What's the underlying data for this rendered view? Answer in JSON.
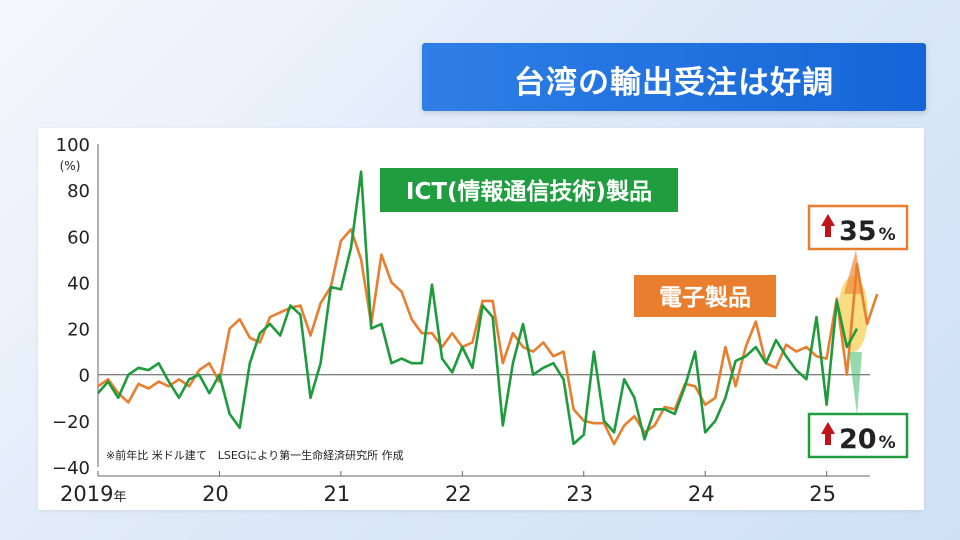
{
  "title": "台湾の輸出受注は好調",
  "chart_data": {
    "type": "line",
    "ylabel_unit": "(%)",
    "ylim": [
      -40,
      100
    ],
    "yticks": [
      100,
      80,
      60,
      40,
      20,
      0,
      -20,
      -40
    ],
    "xticks": [
      {
        "label": "2019",
        "suffix": "年",
        "t": 0
      },
      {
        "label": "20",
        "t": 12
      },
      {
        "label": "21",
        "t": 24
      },
      {
        "label": "22",
        "t": 36
      },
      {
        "label": "23",
        "t": 48
      },
      {
        "label": "24",
        "t": 60
      },
      {
        "label": "25",
        "t": 72
      }
    ],
    "source_note": "※前年比 米ドル建て　LSEGにより第一生命経済研究所 作成",
    "series": [
      {
        "name": "ICT(情報通信技術)製品",
        "color": "#1e9b3c",
        "values": [
          -8,
          -3,
          -10,
          0,
          3,
          2,
          5,
          -3,
          -10,
          -2,
          0,
          -8,
          0,
          -17,
          -23,
          5,
          18,
          22,
          17,
          30,
          26,
          -10,
          5,
          38,
          37,
          55,
          88,
          20,
          22,
          5,
          7,
          5,
          5,
          39,
          7,
          1,
          12,
          3,
          30,
          25,
          -22,
          5,
          22,
          0,
          3,
          5,
          -2,
          -30,
          -26,
          10,
          -20,
          -25,
          -2,
          -10,
          -28,
          -15,
          -15,
          -17,
          -5,
          10,
          -25,
          -20,
          -10,
          6,
          8,
          12,
          5,
          15,
          8,
          2,
          -2,
          25,
          -13,
          32,
          12,
          20
        ]
      },
      {
        "name": "電子製品",
        "color": "#e87e2e",
        "values": [
          -5,
          -2,
          -8,
          -12,
          -4,
          -6,
          -3,
          -5,
          -2,
          -5,
          2,
          5,
          -3,
          20,
          24,
          16,
          14,
          25,
          27,
          29,
          30,
          17,
          31,
          38,
          58,
          63,
          50,
          22,
          52,
          40,
          36,
          24,
          18,
          18,
          12,
          18,
          12,
          14,
          32,
          32,
          5,
          18,
          12,
          10,
          14,
          8,
          10,
          -15,
          -20,
          -21,
          -21,
          -30,
          -22,
          -18,
          -25,
          -22,
          -14,
          -15,
          -4,
          -5,
          -13,
          -10,
          12,
          -5,
          12,
          23,
          5,
          3,
          13,
          10,
          12,
          8,
          7,
          33,
          0,
          48,
          22,
          35
        ]
      }
    ],
    "annotations": {
      "ict_label": "ICT(情報通信技術)製品",
      "elec_label": "電子製品",
      "elec_latest_value": "35",
      "ict_latest_value": "20",
      "unit": "%"
    }
  }
}
